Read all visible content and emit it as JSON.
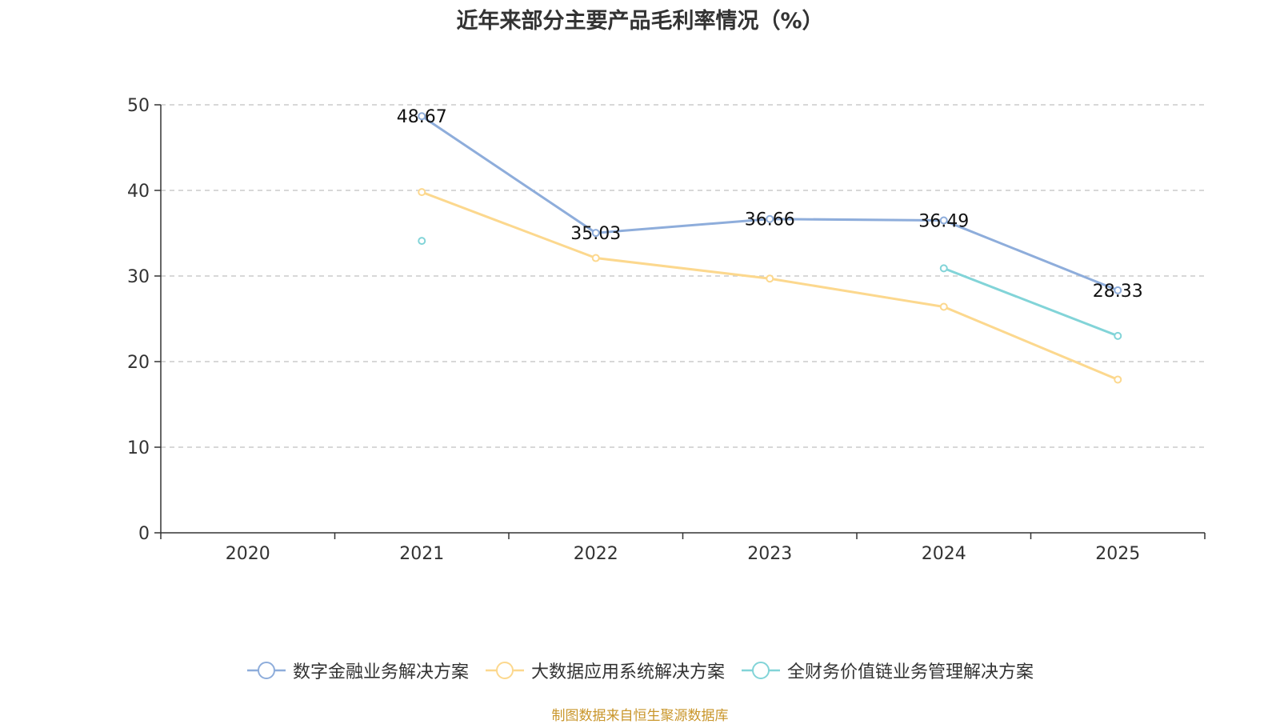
{
  "chart_data": {
    "type": "line",
    "title": "近年来部分主要产品毛利率情况（%）",
    "categories": [
      "2020",
      "2021",
      "2022",
      "2023",
      "2024",
      "2025"
    ],
    "ylim": [
      0,
      50
    ],
    "yticks": [
      0,
      10,
      20,
      30,
      40,
      50
    ],
    "grid": true,
    "legend_position": "bottom",
    "series": [
      {
        "name": "数字金融业务解决方案",
        "color": "#8eaddb",
        "values": [
          null,
          48.67,
          35.03,
          36.66,
          36.49,
          28.33
        ],
        "labels": [
          null,
          "48.67",
          "35.03",
          "36.66",
          "36.49",
          "28.33"
        ]
      },
      {
        "name": "大数据应用系统解决方案",
        "color": "#fcd88e",
        "values": [
          null,
          39.8,
          32.1,
          29.7,
          26.4,
          17.9
        ],
        "labels": [
          null,
          null,
          null,
          null,
          null,
          null
        ]
      },
      {
        "name": "全财务价值链业务管理解决方案",
        "color": "#82d4d8",
        "values": [
          null,
          34.1,
          null,
          null,
          30.9,
          23.0
        ],
        "labels": [
          null,
          null,
          null,
          null,
          null,
          null
        ]
      }
    ]
  },
  "source": "制图数据来自恒生聚源数据库"
}
